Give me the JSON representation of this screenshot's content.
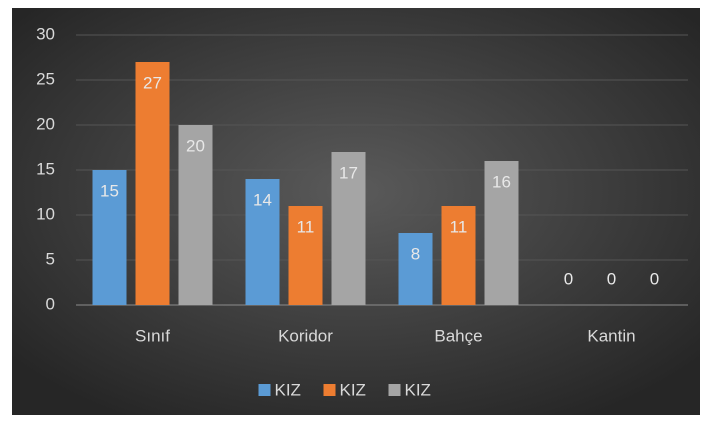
{
  "chart_data": {
    "type": "bar",
    "categories": [
      "Sınıf",
      "Koridor",
      "Bahçe",
      "Kantin"
    ],
    "series": [
      {
        "name": "KIZ",
        "color": "#5b9bd5",
        "values": [
          15,
          14,
          8,
          0
        ]
      },
      {
        "name": "KIZ",
        "color": "#ed7d31",
        "values": [
          27,
          11,
          11,
          0
        ]
      },
      {
        "name": "KIZ",
        "color": "#a5a5a5",
        "values": [
          20,
          17,
          16,
          0
        ]
      }
    ],
    "ylim": [
      0,
      30
    ],
    "yticks": [
      0,
      5,
      10,
      15,
      20,
      25,
      30
    ],
    "grid": true,
    "legend": "bottom"
  }
}
